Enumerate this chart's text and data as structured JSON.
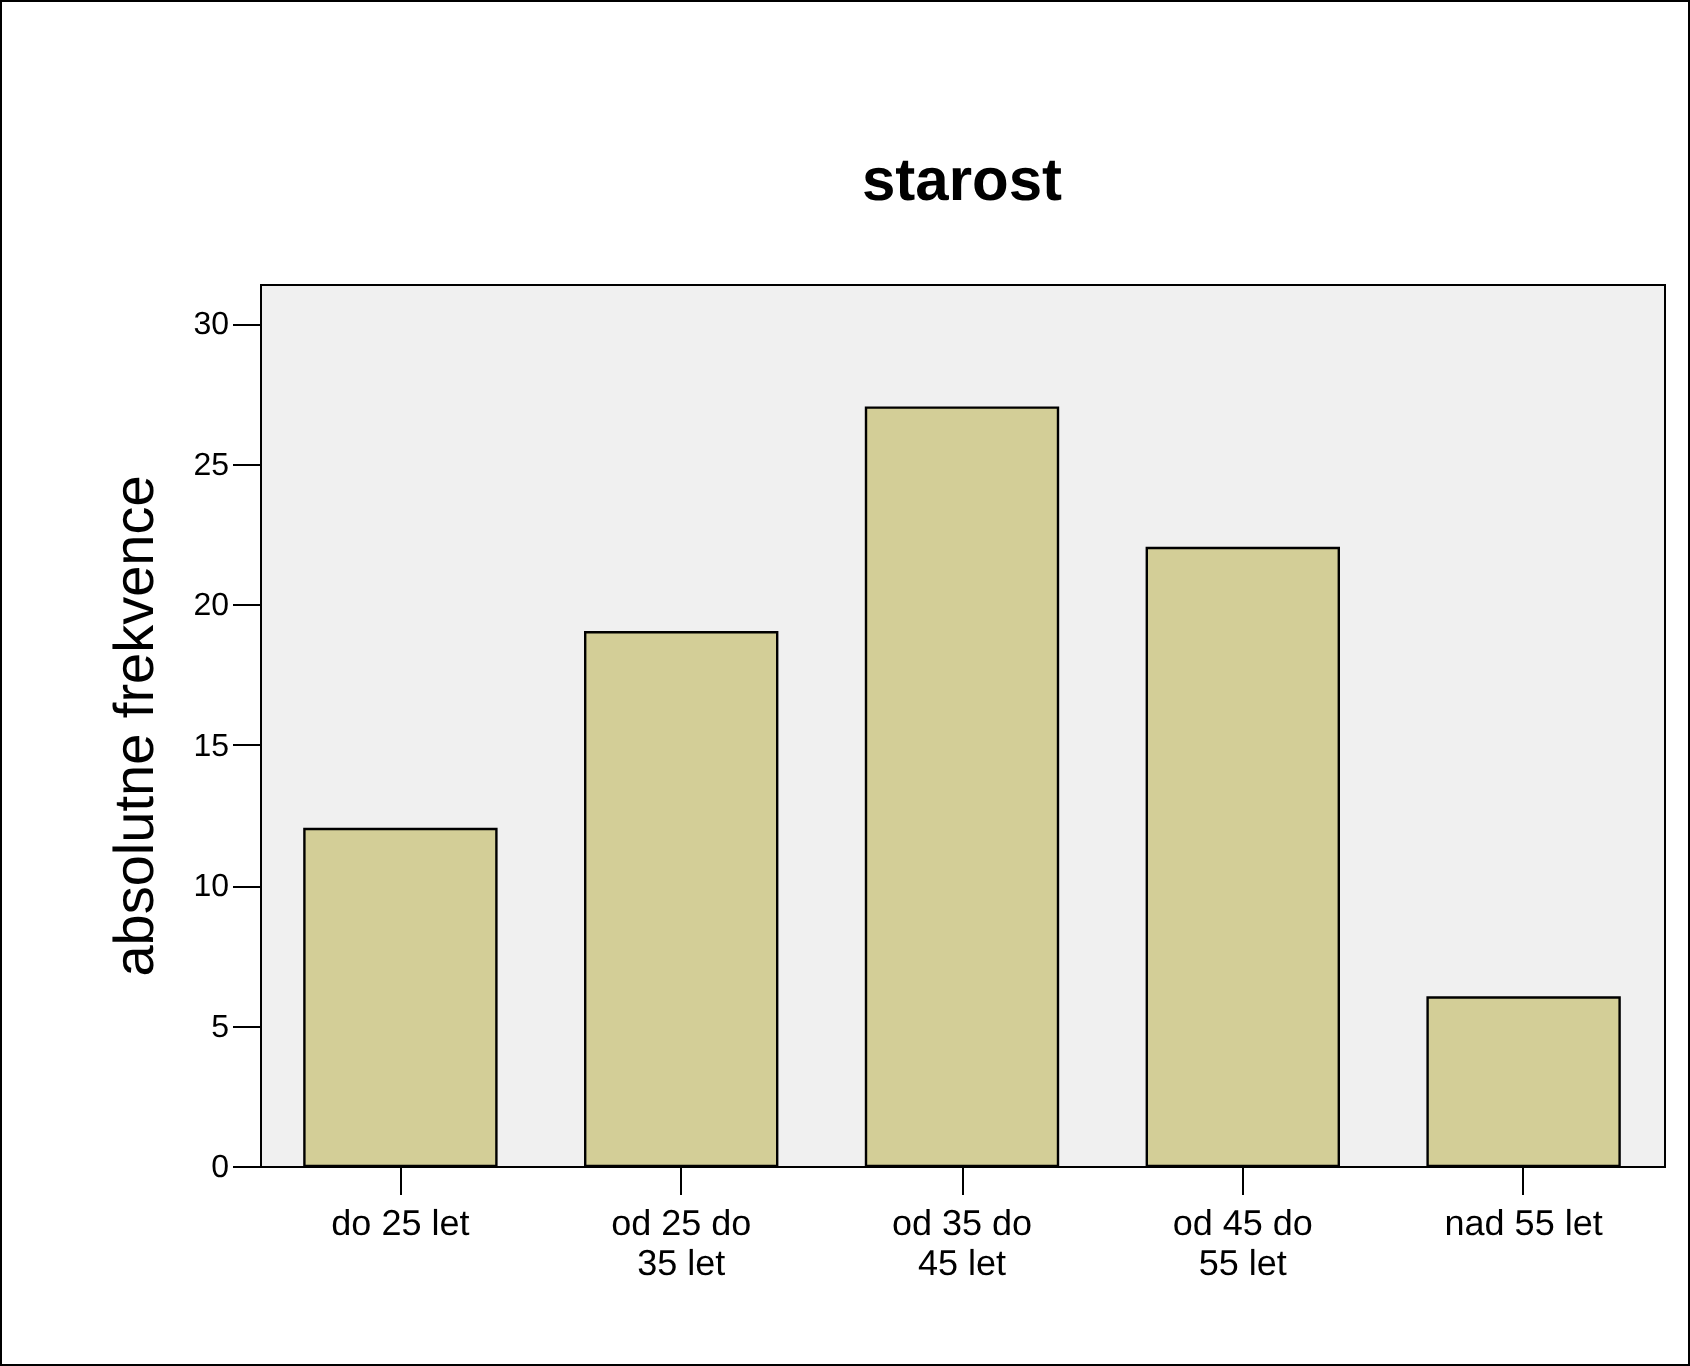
{
  "chart_data": {
    "type": "bar",
    "title": "starost",
    "ylabel": "absolutne frekvence",
    "categories": [
      "do 25 let",
      "od 25 do 35 let",
      "od 35 do 45 let",
      "od 45 do 55 let",
      "nad 55 let"
    ],
    "values": [
      12,
      19,
      27,
      22,
      6
    ],
    "color": "#d3ce97",
    "ylim": [
      0,
      31.4
    ],
    "yticks": [
      0,
      5,
      10,
      15,
      20,
      25,
      30
    ],
    "grid": false
  }
}
